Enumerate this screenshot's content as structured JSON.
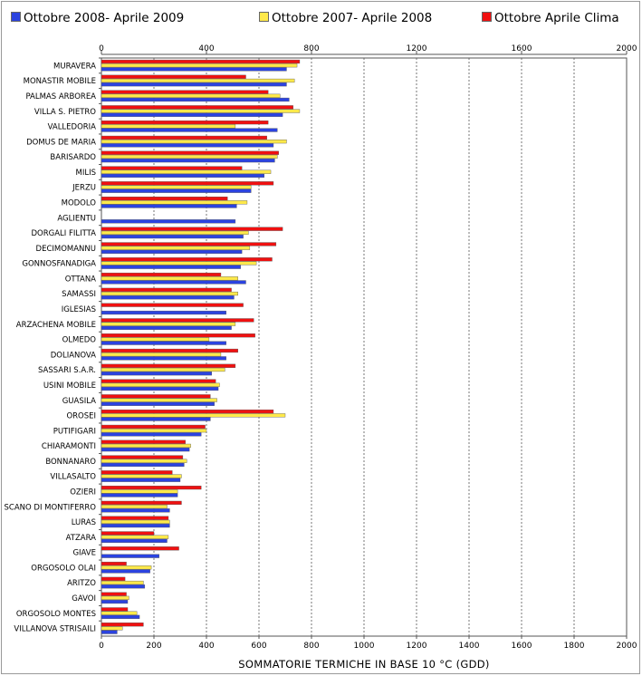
{
  "colors": {
    "s2009": "#2b43e0",
    "s2008": "#ffe94a",
    "clima": "#f01010"
  },
  "chart_data": {
    "type": "bar",
    "orientation": "horizontal",
    "xlabel": "SOMMATORIE TERMICHE IN BASE 10 °C (GDD)",
    "xlim": [
      0,
      2000
    ],
    "ticks": [
      "0",
      "200",
      "400",
      "600",
      "800",
      "1000",
      "1200",
      "1400",
      "1600",
      "1800",
      "2000"
    ],
    "top_ticks": [
      "0",
      "400",
      "800",
      "1200",
      "1600",
      "2000"
    ],
    "grid": "vertical dashed",
    "legend_position": "top",
    "series": [
      {
        "name": "Ottobre 2008- Aprile 2009",
        "color": "#2b43e0",
        "values": [
          705,
          705,
          715,
          690,
          670,
          655,
          660,
          620,
          570,
          515,
          510,
          540,
          535,
          530,
          550,
          505,
          475,
          495,
          475,
          475,
          420,
          445,
          430,
          415,
          380,
          335,
          315,
          300,
          290,
          260,
          260,
          250,
          220,
          185,
          165,
          100,
          145,
          60
        ]
      },
      {
        "name": "Ottobre 2007- Aprile 2008",
        "color": "#ffe94a",
        "values": [
          745,
          735,
          680,
          755,
          510,
          705,
          670,
          645,
          570,
          555,
          0,
          560,
          565,
          590,
          520,
          520,
          0,
          510,
          410,
          455,
          470,
          450,
          440,
          700,
          400,
          340,
          325,
          305,
          290,
          250,
          260,
          255,
          0,
          190,
          160,
          105,
          135,
          80
        ]
      },
      {
        "name": "Ottobre Aprile Clima",
        "color": "#f01010",
        "values": [
          755,
          550,
          635,
          730,
          635,
          630,
          675,
          535,
          655,
          480,
          0,
          690,
          665,
          650,
          455,
          495,
          540,
          580,
          585,
          520,
          510,
          435,
          415,
          655,
          395,
          320,
          310,
          270,
          380,
          305,
          255,
          200,
          295,
          95,
          90,
          95,
          100,
          160
        ]
      }
    ],
    "categories": [
      "MURAVERA",
      "MONASTIR MOBILE",
      "PALMAS ARBOREA",
      "VILLA S. PIETRO",
      "VALLEDORIA",
      "DOMUS DE MARIA",
      "BARISARDO",
      "MILIS",
      "JERZU",
      "MODOLO",
      "AGLIENTU",
      "DORGALI FILITTA",
      "DECIMOMANNU",
      "GONNOSFANADIGA",
      "OTTANA",
      "SAMASSI",
      "IGLESIAS",
      "ARZACHENA MOBILE",
      "OLMEDO",
      "DOLIANOVA",
      "SASSARI S.A.R.",
      "USINI MOBILE",
      "GUASILA",
      "OROSEI",
      "PUTIFIGARI",
      "CHIARAMONTI",
      "BONNANARO",
      "VILLASALTO",
      "OZIERI",
      "SCANO DI MONTIFERRO",
      "LURAS",
      "ATZARA",
      "GIAVE",
      "ORGOSOLO OLAI",
      "ARITZO",
      "GAVOI",
      "ORGOSOLO MONTES",
      "VILLANOVA STRISAILI"
    ]
  }
}
